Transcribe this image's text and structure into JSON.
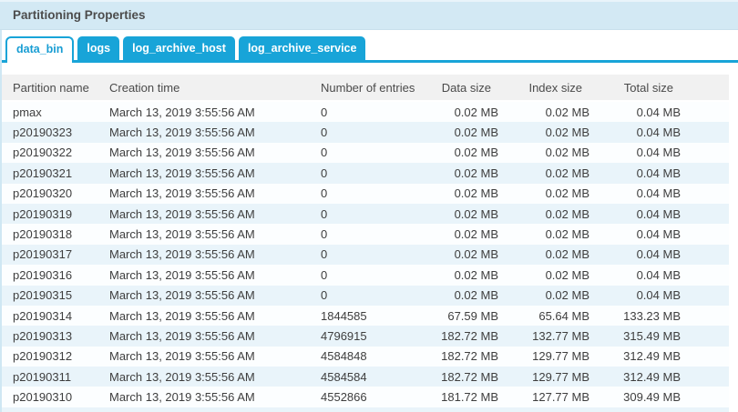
{
  "panel": {
    "title": "Partitioning Properties"
  },
  "tabs": [
    {
      "label": "data_bin",
      "active": true
    },
    {
      "label": "logs",
      "active": false
    },
    {
      "label": "log_archive_host",
      "active": false
    },
    {
      "label": "log_archive_service",
      "active": false
    }
  ],
  "table": {
    "columns": [
      "Partition name",
      "Creation time",
      "Number of entries",
      "Data size",
      "Index size",
      "Total size"
    ],
    "rows": [
      [
        "pmax",
        "March 13, 2019 3:55:56 AM",
        "0",
        "0.02 MB",
        "0.02 MB",
        "0.04 MB"
      ],
      [
        "p20190323",
        "March 13, 2019 3:55:56 AM",
        "0",
        "0.02 MB",
        "0.02 MB",
        "0.04 MB"
      ],
      [
        "p20190322",
        "March 13, 2019 3:55:56 AM",
        "0",
        "0.02 MB",
        "0.02 MB",
        "0.04 MB"
      ],
      [
        "p20190321",
        "March 13, 2019 3:55:56 AM",
        "0",
        "0.02 MB",
        "0.02 MB",
        "0.04 MB"
      ],
      [
        "p20190320",
        "March 13, 2019 3:55:56 AM",
        "0",
        "0.02 MB",
        "0.02 MB",
        "0.04 MB"
      ],
      [
        "p20190319",
        "March 13, 2019 3:55:56 AM",
        "0",
        "0.02 MB",
        "0.02 MB",
        "0.04 MB"
      ],
      [
        "p20190318",
        "March 13, 2019 3:55:56 AM",
        "0",
        "0.02 MB",
        "0.02 MB",
        "0.04 MB"
      ],
      [
        "p20190317",
        "March 13, 2019 3:55:56 AM",
        "0",
        "0.02 MB",
        "0.02 MB",
        "0.04 MB"
      ],
      [
        "p20190316",
        "March 13, 2019 3:55:56 AM",
        "0",
        "0.02 MB",
        "0.02 MB",
        "0.04 MB"
      ],
      [
        "p20190315",
        "March 13, 2019 3:55:56 AM",
        "0",
        "0.02 MB",
        "0.02 MB",
        "0.04 MB"
      ],
      [
        "p20190314",
        "March 13, 2019 3:55:56 AM",
        "1844585",
        "67.59 MB",
        "65.64 MB",
        "133.23 MB"
      ],
      [
        "p20190313",
        "March 13, 2019 3:55:56 AM",
        "4796915",
        "182.72 MB",
        "132.77 MB",
        "315.49 MB"
      ],
      [
        "p20190312",
        "March 13, 2019 3:55:56 AM",
        "4584848",
        "182.72 MB",
        "129.77 MB",
        "312.49 MB"
      ],
      [
        "p20190311",
        "March 13, 2019 3:55:56 AM",
        "4584584",
        "182.72 MB",
        "129.77 MB",
        "312.49 MB"
      ],
      [
        "p20190310",
        "March 13, 2019 3:55:56 AM",
        "4552866",
        "181.72 MB",
        "127.77 MB",
        "309.49 MB"
      ]
    ]
  },
  "colors": {
    "accent": "#18a4d8",
    "titlebar_bg": "#d3e9f4",
    "header_row_bg": "#f1f1f1",
    "row_alt_bg": "#e9f4fa",
    "active_tab_text": "#189dd3"
  }
}
